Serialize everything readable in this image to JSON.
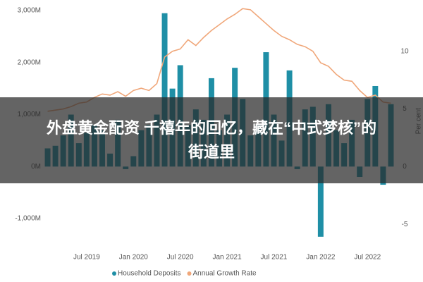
{
  "chart_data": {
    "type": "bar_line",
    "title": [
      "外盘黄金配资 千禧年的回忆，藏在“中式梦核”的",
      "街道里"
    ],
    "y2_label": "Per cent",
    "categories": [
      null,
      null,
      null,
      null,
      null,
      "Jul 2019",
      null,
      null,
      null,
      null,
      null,
      "Jan 2020",
      null,
      null,
      null,
      null,
      null,
      "Jul 2020",
      null,
      null,
      null,
      null,
      null,
      "Jan 2021",
      null,
      null,
      null,
      null,
      null,
      "Jul 2021",
      null,
      null,
      null,
      null,
      null,
      "Jan 2022",
      null,
      null,
      null,
      null,
      null,
      "Jul 2022",
      null,
      null,
      null
    ],
    "series": [
      {
        "name": "Household Deposits",
        "color": "#1f8fa6",
        "type": "bar",
        "values": [
          350,
          400,
          600,
          1000,
          450,
          650,
          800,
          700,
          250,
          900,
          -50,
          200,
          700,
          800,
          1000,
          2950,
          1500,
          1950,
          800,
          1100,
          900,
          1700,
          700,
          1000,
          1900,
          1300,
          600,
          800,
          2200,
          1000,
          500,
          1850,
          -50,
          1100,
          1150,
          -1350,
          1200,
          700,
          450,
          900,
          -200,
          1300,
          1550,
          -350,
          1200
        ]
      },
      {
        "name": "Annual Growth Rate",
        "color": "#f0a77a",
        "type": "line",
        "axis": "y2",
        "values": [
          4.8,
          4.9,
          5.0,
          5.2,
          5.5,
          5.6,
          6.0,
          6.3,
          6.2,
          6.5,
          6.1,
          6.6,
          6.8,
          6.6,
          7.2,
          9.5,
          10,
          10.2,
          11,
          10.5,
          11.2,
          11.8,
          12.3,
          12.8,
          13.2,
          13.7,
          13.6,
          13.0,
          12.4,
          11.8,
          11.3,
          11.0,
          10.6,
          10.4,
          10.0,
          9.0,
          8.7,
          8.0,
          7.5,
          7.4,
          6.6,
          6.0,
          6.2,
          5.6,
          5.5
        ]
      }
    ],
    "ylim": [
      -1400,
      3150
    ],
    "yticks": [
      {
        "value": -1000,
        "label": "-1,000M"
      },
      {
        "value": 0,
        "label": "0M"
      },
      {
        "value": 1000,
        "label": "1,000M"
      },
      {
        "value": 2000,
        "label": "2,000M"
      },
      {
        "value": 3000,
        "label": "3,000M"
      }
    ],
    "y2lim": [
      -6.3,
      14.2
    ],
    "y2ticks": [
      -5,
      0,
      5,
      10
    ],
    "grid": false,
    "legend": "bottom"
  }
}
